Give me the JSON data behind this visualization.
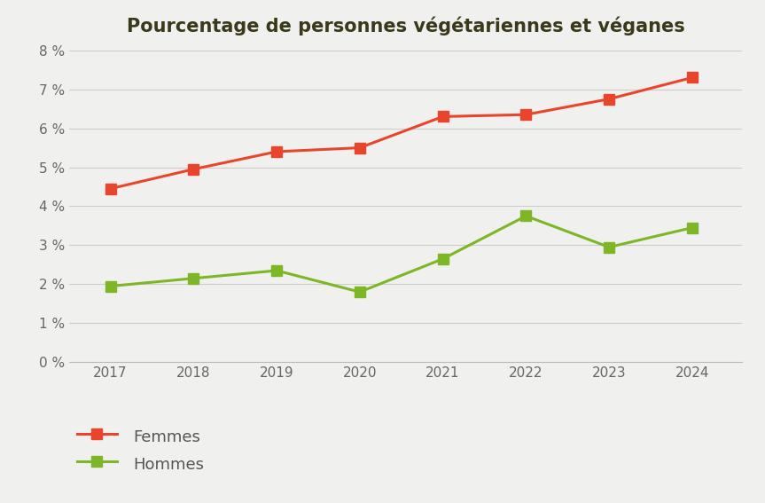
{
  "title": "Pourcentage de personnes végétariennes et véganes",
  "years": [
    2017,
    2018,
    2019,
    2020,
    2021,
    2022,
    2023,
    2024
  ],
  "femmes": [
    4.45,
    4.95,
    5.4,
    5.5,
    6.3,
    6.35,
    6.75,
    7.3
  ],
  "hommes": [
    1.95,
    2.15,
    2.35,
    1.8,
    2.65,
    3.75,
    2.95,
    3.45
  ],
  "femmes_color": "#E8452C",
  "hommes_color": "#7DB626",
  "background_color": "#F0F0EE",
  "plot_bg_color": "#F0F0EE",
  "grid_color": "#CCCCCC",
  "title_color": "#3A3A1A",
  "ylim": [
    0,
    8
  ],
  "yticks": [
    0,
    1,
    2,
    3,
    4,
    5,
    6,
    7,
    8
  ],
  "legend_femmes": "Femmes",
  "legend_hommes": "Hommes",
  "marker": "s",
  "marker_size": 9,
  "linewidth": 2.2
}
